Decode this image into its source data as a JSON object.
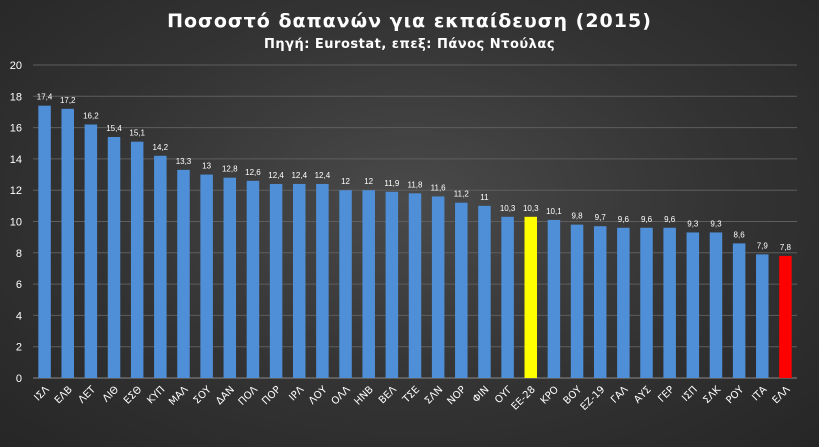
{
  "chart_data": {
    "type": "bar",
    "title": "Ποσοστό  δαπανών  για εκπαίδευση  (2015)",
    "subtitle": "Πηγή: Eurostat, επεξ: Πάνος Ντούλας",
    "xlabel": "",
    "ylabel": "",
    "ylim": [
      0,
      20
    ],
    "yticks": [
      0,
      2,
      4,
      6,
      8,
      10,
      12,
      14,
      16,
      18,
      20
    ],
    "grid": true,
    "legend": "none",
    "categories": [
      "ΙΣΛ",
      "ΕΛΒ",
      "ΛΕΤ",
      "ΛΙΘ",
      "ΕΣΘ",
      "ΚΥΠ",
      "ΜΑΛ",
      "ΣΟΥ",
      "ΔΑΝ",
      "ΠΟΛ",
      "ΠΟΡ",
      "ΙΡΛ",
      "ΛΟΥ",
      "ΟΛΛ",
      "ΗΝΒ",
      "ΒΕΛ",
      "ΤΣΕ",
      "ΣΛΝ",
      "ΝΟΡ",
      "ΦΙΝ",
      "ΟΥΓ",
      "ΕΕ-28",
      "ΚΡΟ",
      "ΒΟΥ",
      "ΕΖ-19",
      "ΓΑΛ",
      "ΑΥΣ",
      "ΓΕΡ",
      "ΙΣΠ",
      "ΣΛΚ",
      "ΡΟΥ",
      "ΙΤΑ",
      "ΕΛΛ"
    ],
    "values": [
      17.4,
      17.2,
      16.2,
      15.4,
      15.1,
      14.2,
      13.3,
      13,
      12.8,
      12.6,
      12.4,
      12.4,
      12.4,
      12,
      12,
      11.9,
      11.8,
      11.6,
      11.2,
      11,
      10.3,
      10.3,
      10.1,
      9.8,
      9.7,
      9.6,
      9.6,
      9.6,
      9.3,
      9.3,
      8.6,
      7.9,
      7.8
    ],
    "value_labels": [
      "17,4",
      "17,2",
      "16,2",
      "15,4",
      "15,1",
      "14,2",
      "13,3",
      "13",
      "12,8",
      "12,6",
      "12,4",
      "12,4",
      "12,4",
      "12",
      "12",
      "11,9",
      "11,8",
      "11,6",
      "11,2",
      "11",
      "10,3",
      "10,3",
      "10,1",
      "9,8",
      "9,7",
      "9,6",
      "9,6",
      "9,6",
      "9,3",
      "9,3",
      "8,6",
      "7,9",
      "7,8"
    ],
    "colors": {
      "default_bar": "#4f8fd8",
      "highlight": {
        "ΕΕ-28": "#ffff00",
        "ΕΛΛ": "#ff0000"
      },
      "grid": "#5e5e5e",
      "text": "#ffffff"
    }
  }
}
